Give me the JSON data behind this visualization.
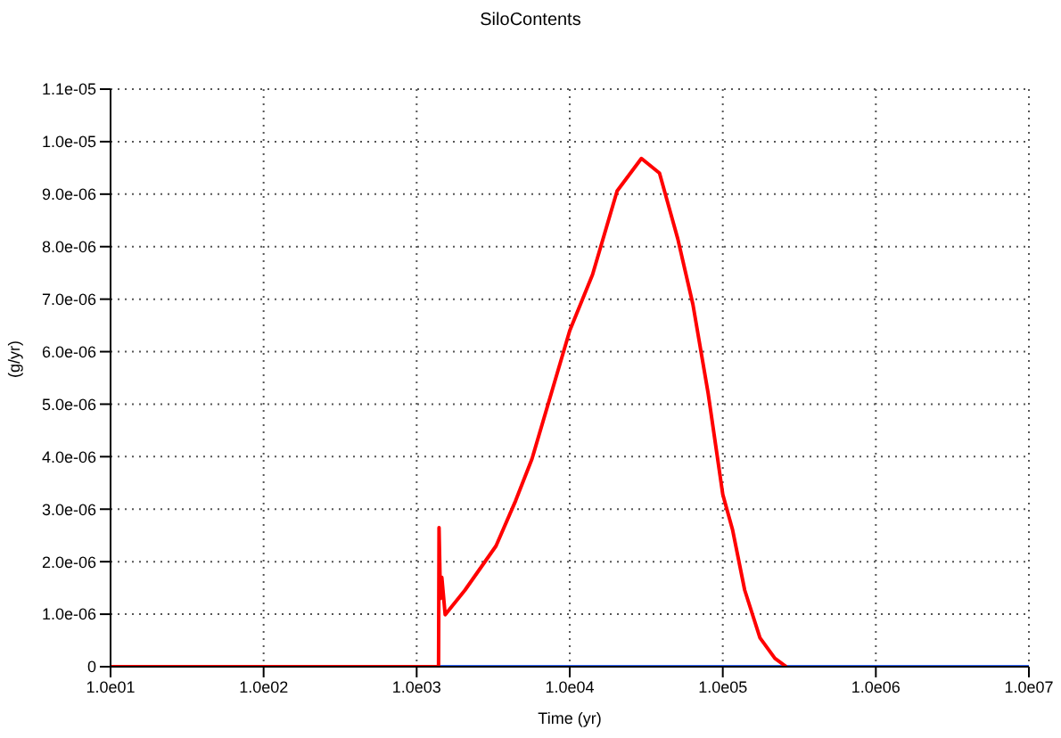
{
  "chart_data": {
    "type": "line",
    "title": "SiloContents",
    "xlabel": "Time (yr)",
    "ylabel": "(g/yr)",
    "log": "x",
    "xlim": [
      10,
      10000000
    ],
    "xticks": [
      {
        "value": 10,
        "label": "1.0e01"
      },
      {
        "value": 100,
        "label": "1.0e02"
      },
      {
        "value": 1000,
        "label": "1.0e03"
      },
      {
        "value": 10000,
        "label": "1.0e04"
      },
      {
        "value": 100000,
        "label": "1.0e05"
      },
      {
        "value": 1000000,
        "label": "1.0e06"
      },
      {
        "value": 10000000,
        "label": "1.0e07"
      }
    ],
    "ylim": [
      0,
      1.1e-05
    ],
    "yticks": [
      0,
      {
        "value": 1e-06,
        "label": "1.0e-06"
      },
      {
        "value": 2e-06,
        "label": "2.0e-06"
      },
      {
        "value": 3e-06,
        "label": "3.0e-06"
      },
      {
        "value": 4e-06,
        "label": "4.0e-06"
      },
      {
        "value": 5e-06,
        "label": "5.0e-06"
      },
      {
        "value": 6e-06,
        "label": "6.0e-06"
      },
      {
        "value": 7e-06,
        "label": "7.0e-06"
      },
      {
        "value": 8e-06,
        "label": "8.0e-06"
      },
      {
        "value": 9e-06,
        "label": "9.0e-06"
      },
      {
        "value": 1e-05,
        "label": "1.0e-05"
      },
      {
        "value": 1.1e-05,
        "label": "1.1e-05"
      }
    ],
    "grid": true,
    "marker": "none",
    "line_style": "solid",
    "series": [
      {
        "color": "#3366ff",
        "x": [
          10,
          10000000
        ],
        "values": [
          0,
          0
        ]
      },
      {
        "color": "#ff0000",
        "x": [
          10,
          1390,
          1400,
          1430,
          1460,
          1535,
          1700,
          2070,
          3300,
          4430,
          5670,
          10000,
          14100,
          20400,
          29400,
          38600,
          50800,
          63800,
          80300,
          100000,
          116000,
          139000,
          175000,
          219000,
          260000
        ],
        "values": [
          0,
          0,
          2.65e-06,
          1.3e-06,
          1.7e-06,
          9.9e-07,
          1.15e-06,
          1.46e-06,
          2.3e-06,
          3.16e-06,
          3.96e-06,
          6.4e-06,
          7.47e-06,
          9.06e-06,
          9.68e-06,
          9.4e-06,
          8.15e-06,
          6.9e-06,
          5.2e-06,
          3.28e-06,
          2.6e-06,
          1.46e-06,
          5.5e-07,
          1.6e-07,
          0
        ]
      }
    ]
  }
}
